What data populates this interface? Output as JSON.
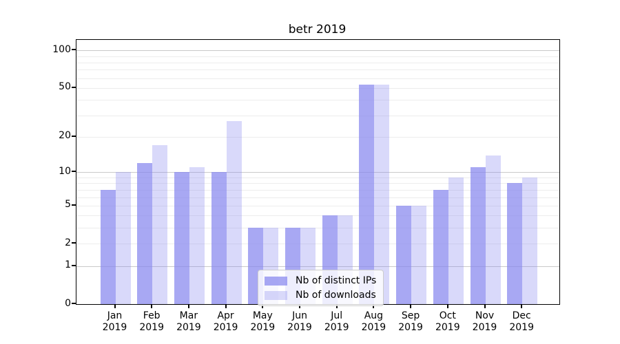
{
  "chart_data": {
    "type": "bar",
    "title": "betr 2019",
    "categories": [
      "Jan",
      "Feb",
      "Mar",
      "Apr",
      "May",
      "Jun",
      "Jul",
      "Aug",
      "Sep",
      "Oct",
      "Nov",
      "Dec"
    ],
    "category_year": "2019",
    "series": [
      {
        "name": "Nb of distinct IPs",
        "color": "#8888eeBA",
        "values": [
          7,
          12,
          10,
          10,
          3,
          3,
          4,
          53,
          5,
          7,
          11,
          8
        ]
      },
      {
        "name": "Nb of downloads",
        "color": "#8888ee52",
        "values": [
          10,
          17,
          11,
          27,
          3,
          3,
          4,
          53,
          5,
          9,
          14,
          9
        ]
      }
    ],
    "xlabel": "",
    "ylabel": "",
    "yscale": "log1p",
    "ylim": [
      0,
      121
    ],
    "yticks": [
      0,
      1,
      2,
      5,
      10,
      20,
      50,
      100
    ],
    "grid": {
      "on": true,
      "major_lines": [
        1,
        10,
        100
      ],
      "minor_lines": [
        2,
        3,
        4,
        5,
        6,
        7,
        8,
        9,
        20,
        30,
        40,
        50,
        60,
        70,
        80,
        90
      ]
    },
    "legend": {
      "position": "lower center"
    },
    "colors": {
      "background": "#ffffff",
      "axis": "#000000",
      "grid_major": "#c9c9c9",
      "grid_minor": "#ececec"
    }
  }
}
